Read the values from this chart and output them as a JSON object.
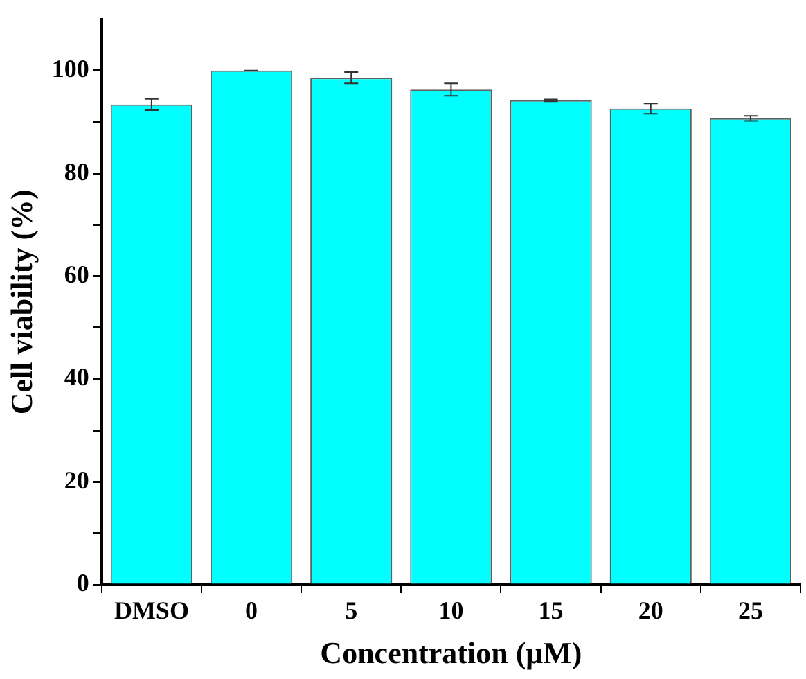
{
  "chart_data": {
    "type": "bar",
    "xlabel": "Concentration (μM)",
    "ylabel": "Cell viability (%)",
    "categories": [
      "DMSO",
      "0",
      "5",
      "10",
      "15",
      "20",
      "25"
    ],
    "values": [
      93.4,
      100,
      98.6,
      96.3,
      94.2,
      92.6,
      90.7
    ],
    "errors": [
      1.1,
      0,
      1.1,
      1.2,
      0.2,
      1.0,
      0.5
    ],
    "color": "#00ffff",
    "ylim": [
      0,
      110
    ],
    "yticks": [
      0,
      {
        "value": 10,
        "label": null
      },
      20,
      {
        "value": 30,
        "label": null
      },
      40,
      {
        "value": 50,
        "label": null
      },
      60,
      {
        "value": 70,
        "label": null
      },
      80,
      {
        "value": 90,
        "label": null
      },
      100
    ],
    "grid": false,
    "legend": false
  }
}
